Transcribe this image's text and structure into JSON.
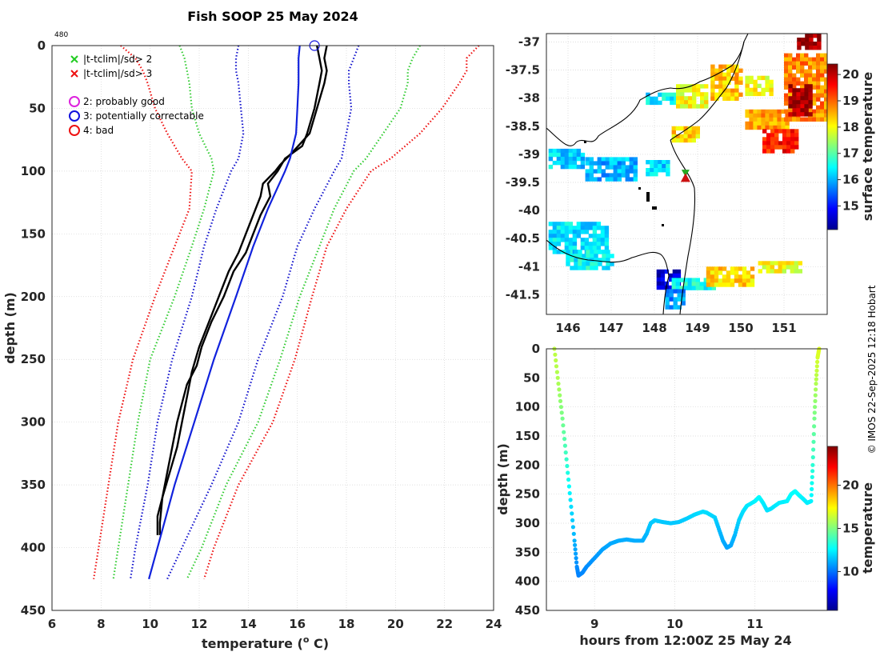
{
  "chart_data": [
    {
      "id": "profile",
      "type": "line",
      "title": "Fish SOOP 25 May 2024",
      "corner_label": "480",
      "xlabel": "temperature (",
      "xlabel_sup": "o",
      "xlabel_end": " C)",
      "ylabel": "depth (m)",
      "xlim": [
        6,
        24
      ],
      "ylim": [
        450,
        0
      ],
      "xticks": [
        6,
        8,
        10,
        12,
        14,
        16,
        18,
        20,
        22,
        24
      ],
      "yticks": [
        0,
        50,
        100,
        150,
        200,
        250,
        300,
        350,
        400,
        450
      ],
      "legend_flags": [
        {
          "label": "|t-tclim|/sd> 2",
          "marker": "x",
          "color": "#22cc22"
        },
        {
          "label": "|t-tclim|/sd> 3",
          "marker": "x",
          "color": "#ee1111"
        }
      ],
      "legend_qc": [
        {
          "label": "2: probably good",
          "marker": "o",
          "color": "#dd22dd"
        },
        {
          "label": "3: potentially correctable",
          "marker": "o",
          "color": "#1111dd"
        },
        {
          "label": "4: bad",
          "marker": "o",
          "color": "#ee1111"
        }
      ],
      "climatology": {
        "depth": [
          0,
          10,
          20,
          30,
          50,
          70,
          90,
          100,
          130,
          160,
          200,
          250,
          300,
          350,
          400,
          425
        ],
        "mean": [
          16.1,
          16.05,
          16.05,
          16.05,
          16.0,
          15.95,
          15.7,
          15.5,
          14.8,
          14.2,
          13.5,
          12.6,
          11.8,
          11.0,
          10.3,
          9.95
        ]
      },
      "envelope_1sd": {
        "left": [
          13.6,
          13.5,
          13.5,
          13.6,
          13.7,
          13.8,
          13.6,
          13.3,
          12.7,
          12.2,
          11.7,
          10.9,
          10.3,
          9.9,
          9.4,
          9.2
        ],
        "right": [
          18.5,
          18.3,
          18.1,
          18.1,
          18.2,
          18.0,
          17.8,
          17.5,
          16.7,
          16.0,
          15.4,
          14.4,
          13.6,
          12.5,
          11.3,
          10.7
        ]
      },
      "envelope_2sd": {
        "left": [
          11.2,
          11.4,
          11.5,
          11.6,
          11.7,
          12.0,
          12.5,
          12.6,
          12.2,
          11.7,
          11.0,
          10.0,
          9.5,
          9.1,
          8.7,
          8.5
        ],
        "right": [
          21.0,
          20.7,
          20.5,
          20.5,
          20.2,
          19.5,
          18.8,
          18.3,
          17.5,
          16.9,
          16.1,
          15.3,
          14.4,
          13.1,
          12.1,
          11.5
        ]
      },
      "envelope_3sd": {
        "left": [
          8.8,
          9.4,
          9.7,
          9.9,
          10.2,
          10.7,
          11.3,
          11.7,
          11.6,
          11.0,
          10.2,
          9.3,
          8.7,
          8.3,
          7.9,
          7.7
        ],
        "right": [
          23.4,
          22.9,
          22.9,
          22.6,
          21.9,
          21.0,
          19.8,
          19.0,
          18.0,
          17.2,
          16.6,
          15.9,
          15.0,
          13.6,
          12.6,
          12.2
        ]
      },
      "profile_down": {
        "depth": [
          0,
          10,
          20,
          30,
          50,
          70,
          80,
          90,
          100,
          110,
          120,
          135,
          150,
          165,
          180,
          200,
          220,
          240,
          255,
          270,
          285,
          300,
          320,
          340,
          360,
          380,
          390
        ],
        "temp": [
          16.8,
          16.9,
          17.0,
          16.9,
          16.7,
          16.4,
          16.2,
          15.5,
          15.2,
          14.8,
          14.9,
          14.5,
          14.2,
          13.9,
          13.4,
          13.0,
          12.5,
          12.1,
          11.9,
          11.5,
          11.3,
          11.1,
          10.9,
          10.7,
          10.5,
          10.4,
          10.4
        ]
      },
      "profile_up": {
        "depth": [
          0,
          10,
          20,
          30,
          50,
          70,
          85,
          95,
          100,
          110,
          120,
          135,
          150,
          165,
          180,
          200,
          220,
          240,
          260,
          280,
          300,
          320,
          340,
          360,
          375,
          390
        ],
        "temp": [
          17.2,
          17.1,
          17.2,
          17.1,
          16.8,
          16.5,
          15.8,
          15.3,
          15.1,
          14.6,
          14.5,
          14.2,
          13.9,
          13.6,
          13.2,
          12.8,
          12.4,
          12.0,
          11.7,
          11.5,
          11.3,
          11.1,
          10.8,
          10.5,
          10.3,
          10.3
        ]
      },
      "qc_marker": {
        "depth": 0,
        "temp": 16.7
      }
    },
    {
      "id": "map",
      "type": "heatmap",
      "xlim": [
        145.5,
        152.0
      ],
      "ylim": [
        -41.85,
        -36.85
      ],
      "xticks": [
        146,
        147,
        148,
        149,
        150,
        151
      ],
      "yticks": [
        -37,
        -37.5,
        -38,
        -38.5,
        -39,
        -39.5,
        -40,
        -40.5,
        -41,
        -41.5
      ],
      "xtick_labels": [
        "146",
        "147",
        "148",
        "149",
        "150",
        "151"
      ],
      "ytick_labels": [
        "-37",
        "-37.5",
        "-38",
        "-38.5",
        "-39",
        "-39.5",
        "-40",
        "-40.5",
        "-41",
        "-41.5"
      ],
      "colorbar": {
        "label": "surface temperature",
        "min": 14.1,
        "max": 20.4,
        "ticks": [
          15,
          16,
          17,
          18,
          19,
          20
        ]
      },
      "sst_patches": [
        {
          "lon": [
            145.55,
            146.9
          ],
          "lat": [
            -40.2,
            -40.75
          ],
          "t": 16.3
        },
        {
          "lon": [
            145.95,
            147.0
          ],
          "lat": [
            -40.7,
            -41.05
          ],
          "t": 16.5
        },
        {
          "lon": [
            145.55,
            146.3
          ],
          "lat": [
            -38.9,
            -39.2
          ],
          "t": 16.2
        },
        {
          "lon": [
            146.4,
            147.6
          ],
          "lat": [
            -39.05,
            -39.45
          ],
          "t": 16.0
        },
        {
          "lon": [
            148.05,
            148.6
          ],
          "lat": [
            -41.05,
            -41.35
          ],
          "t": 14.6
        },
        {
          "lon": [
            148.4,
            149.4
          ],
          "lat": [
            -41.2,
            -41.4
          ],
          "t": 16.6
        },
        {
          "lon": [
            149.2,
            150.3
          ],
          "lat": [
            -41.0,
            -41.3
          ],
          "t": 18.3
        },
        {
          "lon": [
            150.4,
            151.4
          ],
          "lat": [
            -40.9,
            -41.1
          ],
          "t": 18.0
        },
        {
          "lon": [
            148.25,
            148.7
          ],
          "lat": [
            -41.4,
            -41.75
          ],
          "t": 15.8
        },
        {
          "lon": [
            147.8,
            148.6
          ],
          "lat": [
            -37.9,
            -38.1
          ],
          "t": 16.4
        },
        {
          "lon": [
            148.5,
            149.2
          ],
          "lat": [
            -37.75,
            -38.15
          ],
          "t": 18.0
        },
        {
          "lon": [
            149.3,
            150.0
          ],
          "lat": [
            -37.4,
            -38.0
          ],
          "t": 18.4
        },
        {
          "lon": [
            150.1,
            150.7
          ],
          "lat": [
            -37.6,
            -37.9
          ],
          "t": 18.0
        },
        {
          "lon": [
            150.1,
            151.1
          ],
          "lat": [
            -38.2,
            -38.55
          ],
          "t": 18.6
        },
        {
          "lon": [
            150.5,
            151.3
          ],
          "lat": [
            -38.55,
            -38.95
          ],
          "t": 19.5
        },
        {
          "lon": [
            151.0,
            152.0
          ],
          "lat": [
            -37.2,
            -38.4
          ],
          "t": 18.8
        },
        {
          "lon": [
            151.1,
            151.6
          ],
          "lat": [
            -37.75,
            -38.3
          ],
          "t": 20.1
        },
        {
          "lon": [
            151.3,
            151.85
          ],
          "lat": [
            -36.85,
            -37.1
          ],
          "t": 20.3
        },
        {
          "lon": [
            148.4,
            149.0
          ],
          "lat": [
            -38.5,
            -38.75
          ],
          "t": 18.3
        },
        {
          "lon": [
            147.8,
            148.3
          ],
          "lat": [
            -39.1,
            -39.35
          ],
          "t": 16.2
        }
      ],
      "ship_markers": [
        {
          "lon": 148.72,
          "lat": -39.33,
          "color": "#22aa22",
          "shape": "down-triangle"
        },
        {
          "lon": 148.72,
          "lat": -39.42,
          "color": "#cc1111",
          "shape": "up-triangle"
        }
      ]
    },
    {
      "id": "track",
      "type": "scatter",
      "xlabel": "hours from 12:00Z 25 May 24",
      "ylabel": "depth (m)",
      "xlim": [
        8.4,
        11.9
      ],
      "ylim": [
        450,
        0
      ],
      "xticks": [
        9,
        10,
        11
      ],
      "yticks": [
        0,
        50,
        100,
        150,
        200,
        250,
        300,
        350,
        400,
        450
      ],
      "colorbar": {
        "label": "temperature",
        "min": 5.5,
        "max": 24.5,
        "ticks": [
          10,
          15,
          20
        ]
      },
      "hours": [
        8.5,
        8.55,
        8.6,
        8.65,
        8.7,
        8.75,
        8.78,
        8.8,
        8.85,
        8.9,
        9.0,
        9.1,
        9.2,
        9.3,
        9.4,
        9.5,
        9.6,
        9.65,
        9.7,
        9.75,
        9.85,
        9.95,
        10.05,
        10.15,
        10.25,
        10.35,
        10.4,
        10.5,
        10.55,
        10.6,
        10.65,
        10.7,
        10.75,
        10.8,
        10.85,
        10.9,
        11.0,
        11.05,
        11.1,
        11.15,
        11.2,
        11.3,
        11.4,
        11.45,
        11.5,
        11.55,
        11.6,
        11.65,
        11.7,
        11.72,
        11.74,
        11.76,
        11.78,
        11.8
      ],
      "depths": [
        0,
        60,
        120,
        190,
        260,
        330,
        375,
        390,
        385,
        375,
        360,
        345,
        335,
        330,
        328,
        330,
        330,
        318,
        300,
        295,
        298,
        300,
        298,
        292,
        285,
        280,
        282,
        290,
        310,
        330,
        342,
        338,
        320,
        295,
        280,
        270,
        262,
        255,
        265,
        278,
        275,
        265,
        262,
        250,
        245,
        252,
        258,
        265,
        262,
        200,
        120,
        60,
        15,
        0
      ],
      "temps": [
        16.2,
        15.8,
        14.8,
        13.6,
        12.2,
        11.2,
        10.5,
        10.3,
        10.4,
        10.5,
        10.7,
        10.9,
        11.0,
        11.1,
        11.1,
        11.1,
        11.1,
        11.3,
        11.6,
        11.7,
        11.6,
        11.6,
        11.6,
        11.7,
        11.9,
        12.0,
        12.0,
        11.8,
        11.4,
        11.1,
        10.9,
        11.0,
        11.3,
        11.8,
        12.0,
        12.2,
        12.4,
        12.6,
        12.3,
        12.1,
        12.1,
        12.3,
        12.4,
        12.6,
        12.7,
        12.6,
        12.4,
        12.3,
        12.4,
        13.4,
        14.8,
        15.9,
        16.6,
        16.8
      ]
    }
  ],
  "copyright": "© IMOS 22-Sep-2025 12:18 Hobart"
}
